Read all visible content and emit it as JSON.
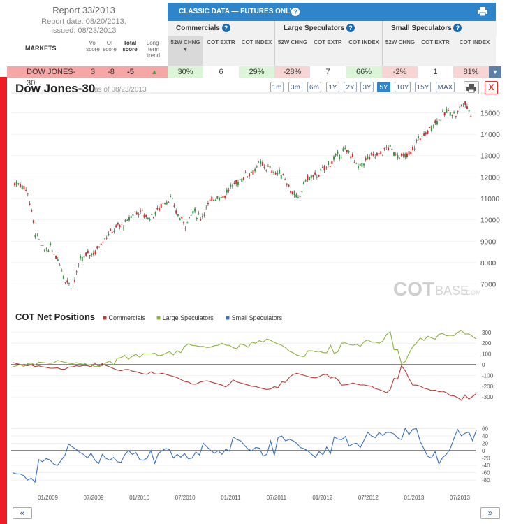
{
  "report": {
    "title": "Report 33/2013",
    "date": "Report date: 08/20/2013,",
    "issued": "issued: 08/23/2013"
  },
  "table": {
    "markets_label": "MARKETS",
    "vol_score": "Vol score",
    "oi_score": "OI score",
    "total_score": "Total score",
    "long_term": "Long-term trend",
    "classic_title": "CLASSIC DATA — FUTURES ONLY",
    "groups": [
      "Commercials",
      "Large Speculators",
      "Small Speculators"
    ],
    "col_52w": "52W CHNG",
    "col_extr": "COT EXTR",
    "col_index": "COT INDEX"
  },
  "row": {
    "market": "DOW JONES-30",
    "vol": "3",
    "oi": "-8",
    "total": "-5",
    "commercials": {
      "chg": "30%",
      "extr": "6",
      "index": "29%"
    },
    "large": {
      "chg": "-28%",
      "extr": "7",
      "index": "66%"
    },
    "small": {
      "chg": "-2%",
      "extr": "1",
      "index": "81%"
    }
  },
  "colors": {
    "accent": "#2f85c9",
    "up": "#2e9a3c",
    "down": "#d42a2a",
    "commercials": "#b23a3a",
    "large": "#8cb13c",
    "small": "#3a6fb8",
    "row_red": "#f7a6a6",
    "row_green": "#dcf5d9",
    "row_pink": "#f8d4d4"
  },
  "chart_header": {
    "name": "Dow Jones-30",
    "asof": "as of 08/23/2013",
    "timeframes": [
      "1m",
      "3m",
      "6m",
      "1Y",
      "2Y",
      "3Y",
      "5Y",
      "10Y",
      "15Y",
      "MAX"
    ],
    "active_timeframe": "5Y"
  },
  "watermark": {
    "bold": "COT",
    "rest": "BASE",
    "suffix": ".COM"
  },
  "cot_header": {
    "title": "COT Net Positions",
    "legend": [
      "Commercials",
      "Large Speculators",
      "Small Speculators"
    ]
  },
  "nav": {
    "prev": "«",
    "next": "»"
  },
  "icons": [
    "help-icon",
    "print-icon",
    "close-icon",
    "dropdown-arrow-icon",
    "trend-arrow-icon"
  ],
  "chart_data": [
    {
      "type": "candlestick",
      "title": "Dow Jones-30",
      "y_ticks": [
        7000,
        8000,
        9000,
        10000,
        11000,
        12000,
        13000,
        14000,
        15000
      ],
      "ylim": [
        6300,
        15700
      ],
      "x": [
        "07/2008",
        "09/2008",
        "10/2008",
        "11/2008",
        "12/2008",
        "01/2009",
        "02/2009",
        "03/2009",
        "04/2009",
        "05/2009",
        "06/2009",
        "07/2009",
        "08/2009",
        "09/2009",
        "10/2009",
        "11/2009",
        "12/2009",
        "01/2010",
        "02/2010",
        "03/2010",
        "04/2010",
        "05/2010",
        "06/2010",
        "07/2010",
        "08/2010",
        "09/2010",
        "10/2010",
        "11/2010",
        "12/2010",
        "01/2011",
        "02/2011",
        "03/2011",
        "04/2011",
        "05/2011",
        "06/2011",
        "07/2011",
        "08/2011",
        "09/2011",
        "10/2011",
        "11/2011",
        "12/2011",
        "01/2012",
        "02/2012",
        "03/2012",
        "04/2012",
        "05/2012",
        "06/2012",
        "07/2012",
        "08/2012",
        "09/2012",
        "10/2012",
        "11/2012",
        "12/2012",
        "01/2013",
        "02/2013",
        "03/2013",
        "04/2013",
        "05/2013",
        "06/2013",
        "07/2013",
        "08/2013"
      ],
      "values": [
        11700,
        11300,
        9400,
        8600,
        8700,
        8200,
        7200,
        6900,
        8100,
        8400,
        8500,
        9100,
        9400,
        9700,
        9800,
        10300,
        10400,
        10100,
        10300,
        10800,
        11000,
        10200,
        9800,
        10400,
        10100,
        10700,
        11100,
        11100,
        11500,
        11800,
        12100,
        12300,
        12600,
        12400,
        12200,
        12100,
        11400,
        10900,
        11900,
        12000,
        12200,
        12600,
        12900,
        13200,
        13100,
        12400,
        12800,
        13000,
        13100,
        13400,
        13100,
        12900,
        13100,
        13800,
        14000,
        14500,
        14800,
        15100,
        14900,
        15500,
        15000
      ],
      "x_ticks": [
        "01/2009",
        "07/2009",
        "01/2010",
        "07/2010",
        "01/2011",
        "07/2011",
        "01/2012",
        "07/2012",
        "01/2013",
        "07/2013"
      ]
    },
    {
      "type": "line",
      "title": "COT Net Positions",
      "y_ticks": [
        -300,
        -200,
        -100,
        0,
        100,
        200,
        300
      ],
      "ylim": [
        -390,
        390
      ],
      "x": [
        "07/2008",
        "09/2008",
        "11/2008",
        "01/2009",
        "03/2009",
        "05/2009",
        "07/2009",
        "09/2009",
        "11/2009",
        "01/2010",
        "03/2010",
        "05/2010",
        "07/2010",
        "09/2010",
        "11/2010",
        "01/2011",
        "03/2011",
        "05/2011",
        "07/2011",
        "09/2011",
        "11/2011",
        "01/2012",
        "03/2012",
        "05/2012",
        "07/2012",
        "09/2012",
        "11/2012",
        "01/2013",
        "03/2013",
        "05/2013",
        "07/2013",
        "08/2013"
      ],
      "series": [
        {
          "name": "Commercials",
          "values": [
            20,
            -10,
            -20,
            -30,
            -20,
            -10,
            10,
            -50,
            -60,
            -90,
            -80,
            -120,
            -180,
            -150,
            -190,
            -160,
            -200,
            -230,
            -160,
            -80,
            -120,
            -90,
            -190,
            -180,
            -200,
            -260,
            -10,
            -190,
            -240,
            -260,
            -330,
            -270
          ]
        },
        {
          "name": "Large Speculators",
          "values": [
            -20,
            10,
            20,
            40,
            10,
            0,
            -10,
            60,
            80,
            100,
            90,
            130,
            180,
            160,
            200,
            150,
            210,
            240,
            180,
            90,
            130,
            110,
            200,
            190,
            210,
            280,
            10,
            200,
            250,
            270,
            320,
            240
          ]
        }
      ]
    },
    {
      "type": "line",
      "y_ticks": [
        -80,
        -60,
        -40,
        -20,
        0,
        20,
        40,
        60
      ],
      "ylim": [
        -95,
        80
      ],
      "x": [
        "07/2008",
        "09/2008",
        "11/2008",
        "01/2009",
        "03/2009",
        "05/2009",
        "07/2009",
        "09/2009",
        "11/2009",
        "01/2010",
        "03/2010",
        "05/2010",
        "07/2010",
        "09/2010",
        "11/2010",
        "01/2011",
        "03/2011",
        "05/2011",
        "07/2011",
        "09/2011",
        "11/2011",
        "01/2012",
        "03/2012",
        "05/2012",
        "07/2012",
        "09/2012",
        "11/2012",
        "01/2013",
        "03/2013",
        "05/2013",
        "07/2013",
        "08/2013"
      ],
      "series": [
        {
          "name": "Small Speculators",
          "values": [
            -60,
            -80,
            -30,
            -40,
            10,
            -20,
            -10,
            -30,
            -10,
            -20,
            0,
            -10,
            -20,
            10,
            -10,
            30,
            0,
            -10,
            40,
            20,
            -10,
            10,
            30,
            20,
            40,
            50,
            30,
            60,
            -20,
            -10,
            40,
            55
          ]
        }
      ]
    }
  ]
}
